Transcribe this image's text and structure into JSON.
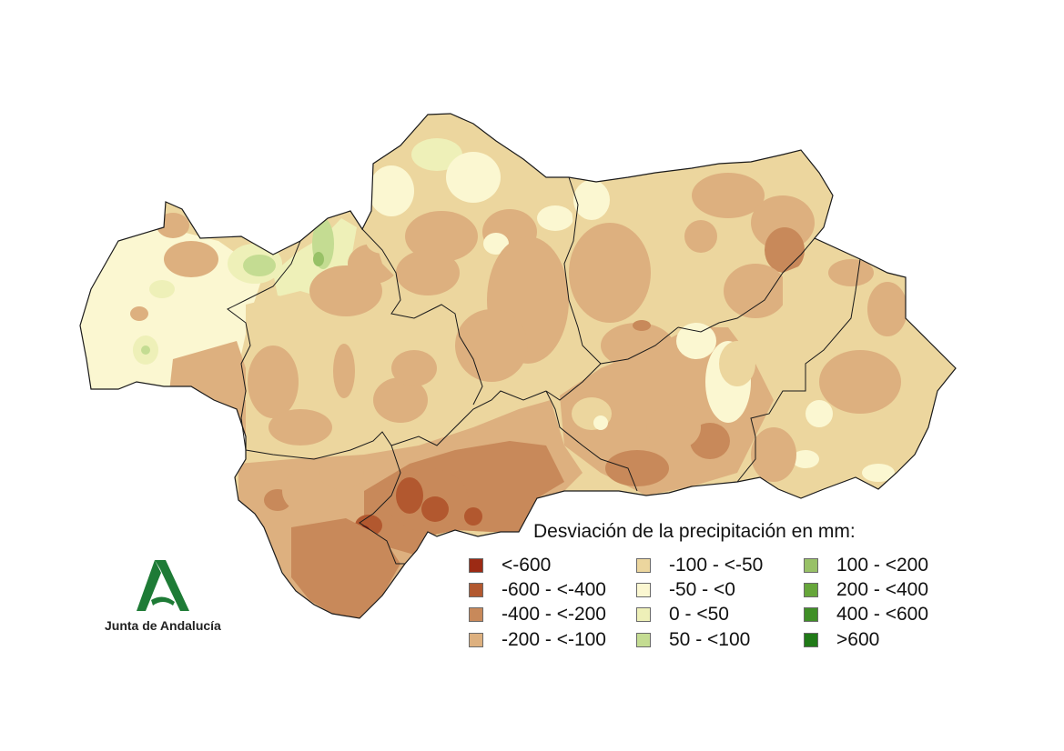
{
  "legend": {
    "title": "Desviación de la precipitación en mm:",
    "items": [
      {
        "label": "<-600",
        "color": "#9c2a14"
      },
      {
        "label": "-600 - <-400",
        "color": "#b2582f"
      },
      {
        "label": "-400 - <-200",
        "color": "#c8895a"
      },
      {
        "label": "-200 - <-100",
        "color": "#ddb07f"
      },
      {
        "label": "-100 - <-50",
        "color": "#ecd69e"
      },
      {
        "label": "-50 - <0",
        "color": "#fbf7d1"
      },
      {
        "label": "0 - <50",
        "color": "#eef0b8"
      },
      {
        "label": "50 - <100",
        "color": "#c4dc92"
      },
      {
        "label": "100 - <200",
        "color": "#98c167"
      },
      {
        "label": "200 - <400",
        "color": "#66a63a"
      },
      {
        "label": "400 - <600",
        "color": "#3f8f26"
      },
      {
        "label": ">600",
        "color": "#207a17"
      }
    ]
  },
  "logo": {
    "text": "Junta de Andalucía",
    "icon": "junta-andalucia-logo",
    "color": "#1e7b36"
  },
  "map": {
    "region": "andalucia-provinces",
    "base_color": "#ecd69e"
  }
}
